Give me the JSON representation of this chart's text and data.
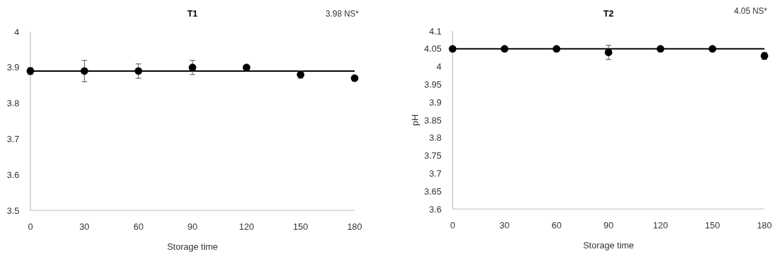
{
  "chart_data": [
    {
      "type": "scatter",
      "title": "T1",
      "xlabel": "Storage time",
      "x": [
        0,
        30,
        60,
        90,
        120,
        150,
        180
      ],
      "values": [
        3.89,
        3.89,
        3.89,
        3.9,
        3.9,
        3.88,
        3.87
      ],
      "errors": [
        0.01,
        0.03,
        0.02,
        0.02,
        null,
        0.01,
        null
      ],
      "color": "#000000",
      "marker": "circle",
      "xlim": [
        0,
        180
      ],
      "xticks": [
        0,
        30,
        60,
        90,
        120,
        150,
        180
      ],
      "ylim": [
        3.5,
        4
      ],
      "yticks": [
        3.5,
        3.6,
        3.7,
        3.8,
        3.9,
        4
      ],
      "ref_lines": [
        {
          "axis": "y",
          "value": 3.89,
          "color": "#000000"
        }
      ],
      "annotations": [
        "3.98 NS*"
      ]
    },
    {
      "type": "scatter",
      "title": "T2",
      "xlabel": "Storage time",
      "ylabel": "pH",
      "x": [
        0,
        30,
        60,
        90,
        120,
        150,
        180
      ],
      "values": [
        4.05,
        4.05,
        4.05,
        4.04,
        4.05,
        4.05,
        4.03
      ],
      "errors": [
        0.005,
        null,
        null,
        0.02,
        null,
        0.005,
        0.01
      ],
      "color": "#000000",
      "marker": "circle",
      "xlim": [
        0,
        180
      ],
      "xticks": [
        0,
        30,
        60,
        90,
        120,
        150,
        180
      ],
      "ylim": [
        3.6,
        4.1
      ],
      "yticks": [
        3.6,
        3.65,
        3.7,
        3.75,
        3.8,
        3.85,
        3.9,
        3.95,
        4,
        4.05,
        4.1
      ],
      "ref_lines": [
        {
          "axis": "y",
          "value": 4.05,
          "color": "#000000"
        }
      ],
      "annotations": [
        "4.05 NS*"
      ]
    }
  ]
}
